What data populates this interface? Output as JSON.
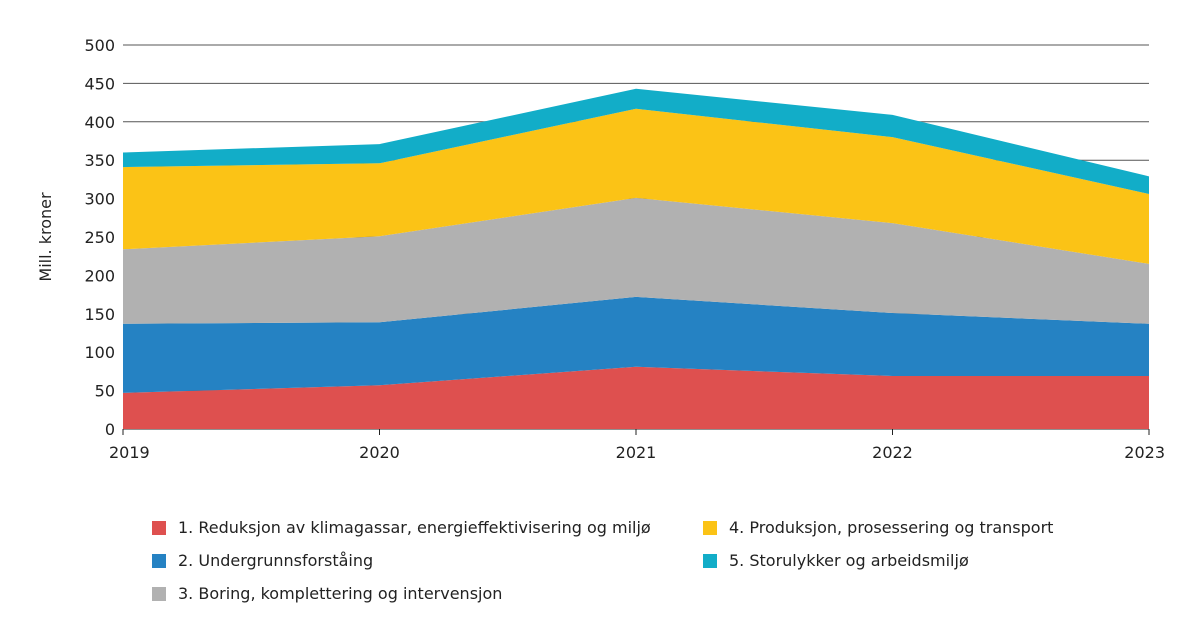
{
  "chart_data": {
    "type": "area",
    "stacked": true,
    "ylabel": "Mill. kroner",
    "xlabel": "",
    "ylim": [
      0,
      500
    ],
    "yticks": [
      "0",
      "50",
      "100",
      "150",
      "200",
      "250",
      "300",
      "350",
      "400",
      "450",
      "500"
    ],
    "categories": [
      "2019",
      "2020",
      "2021",
      "2022",
      "2023"
    ],
    "grid": "horizontal",
    "legend_position": "bottom",
    "series": [
      {
        "name": "1. Reduksjon av klimagassar, energieffektivisering og miljø",
        "color": "#de504f",
        "values": [
          47,
          57,
          81,
          69,
          69
        ]
      },
      {
        "name": "2. Undergrunnsforståing",
        "color": "#2582c3",
        "values": [
          90,
          82,
          91,
          82,
          68
        ]
      },
      {
        "name": "3. Boring, komplettering og intervensjon",
        "color": "#b1b1b1",
        "values": [
          97,
          112,
          129,
          117,
          78
        ]
      },
      {
        "name": "4. Produksjon, prosessering og transport",
        "color": "#fbc316",
        "values": [
          107,
          95,
          116,
          112,
          91
        ]
      },
      {
        "name": "5. Storulykker og arbeidsmiljø",
        "color": "#12adc8",
        "values": [
          19,
          25,
          26,
          29,
          23
        ]
      }
    ]
  }
}
